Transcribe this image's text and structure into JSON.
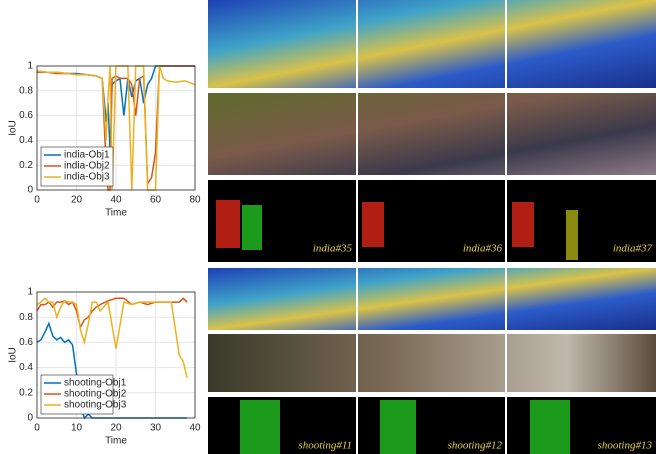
{
  "chart_data": [
    {
      "type": "line",
      "xlabel": "Time",
      "ylabel": "IoU",
      "x": [
        0,
        5,
        10,
        15,
        20,
        25,
        30,
        33,
        35,
        36,
        37,
        38,
        40,
        42,
        44,
        46,
        48,
        50,
        52,
        54,
        56,
        58,
        60,
        62,
        64,
        66,
        70,
        75,
        80
      ],
      "series": [
        {
          "name": "india-Obj1",
          "color": "#0072bd",
          "values": [
            0.96,
            0.95,
            0.95,
            0.94,
            0.94,
            0.93,
            0.92,
            0.9,
            0.55,
            0.7,
            0.3,
            0.85,
            0.88,
            0.9,
            0.6,
            0.9,
            0.75,
            0.88,
            0.9,
            0.7,
            0.85,
            0.9,
            1,
            1,
            1,
            1,
            1,
            1,
            1
          ]
        },
        {
          "name": "india-Obj2",
          "color": "#d95319",
          "values": [
            0.95,
            0.95,
            0.94,
            0.94,
            0.93,
            0.93,
            0.92,
            0.9,
            0.2,
            0,
            0,
            0.9,
            0.92,
            0.9,
            0.9,
            0.9,
            0.85,
            0.6,
            0.9,
            0.92,
            0.05,
            0.1,
            0.3,
            1,
            1,
            1,
            1,
            1,
            1
          ]
        },
        {
          "name": "india-Obj3",
          "color": "#edb120",
          "values": [
            0.96,
            0.95,
            0.95,
            0.94,
            0.93,
            0.93,
            0.92,
            0.9,
            0.4,
            0.75,
            1,
            0,
            1,
            1,
            1,
            1,
            0,
            1,
            1,
            1,
            0,
            0,
            0,
            1,
            0.9,
            0.88,
            0.87,
            0.88,
            0.85
          ]
        }
      ],
      "xlim": [
        0,
        80
      ],
      "xticks": [
        0,
        20,
        40,
        60,
        80
      ],
      "ylim": [
        0,
        1
      ],
      "yticks": [
        0,
        0.2,
        0.4,
        0.6,
        0.8,
        1
      ],
      "grid": true,
      "legend": "lower left"
    },
    {
      "type": "line",
      "xlabel": "Time",
      "ylabel": "IoU",
      "x": [
        0,
        1,
        2,
        3,
        4,
        5,
        6,
        7,
        8,
        9,
        10,
        11,
        12,
        13,
        14,
        15,
        16,
        18,
        20,
        22,
        24,
        26,
        28,
        30,
        32,
        34,
        36,
        37,
        38
      ],
      "series": [
        {
          "name": "shooting-Obj1",
          "color": "#0072bd",
          "values": [
            0.6,
            0.62,
            0.68,
            0.75,
            0.65,
            0.62,
            0.64,
            0.6,
            0.62,
            0.58,
            0.35,
            0.1,
            0,
            0.03,
            0,
            0,
            0,
            0,
            0,
            0,
            0,
            0,
            0,
            0,
            0,
            0,
            0,
            0,
            0
          ]
        },
        {
          "name": "shooting-Obj2",
          "color": "#d95319",
          "values": [
            0.85,
            0.9,
            0.9,
            0.92,
            0.88,
            0.92,
            0.92,
            0.93,
            0.9,
            0.92,
            0.85,
            0.72,
            0.78,
            0.8,
            0.85,
            0.88,
            0.9,
            0.93,
            0.95,
            0.95,
            0.9,
            0.92,
            0.9,
            0.92,
            0.92,
            0.92,
            0.92,
            0.95,
            0.92
          ]
        },
        {
          "name": "shooting-Obj3",
          "color": "#edb120",
          "values": [
            0.9,
            0.92,
            0.95,
            0.92,
            0.92,
            0.8,
            0.88,
            0.93,
            0.92,
            0.92,
            0.9,
            0.7,
            0.6,
            0.75,
            0.92,
            0.92,
            0.85,
            0.92,
            0.55,
            0.92,
            0.9,
            0.92,
            0.92,
            0.92,
            0.92,
            0.92,
            0.5,
            0.45,
            0.32
          ]
        }
      ],
      "xlim": [
        0,
        40
      ],
      "xticks": [
        0,
        10,
        20,
        30,
        40
      ],
      "ylim": [
        0,
        1
      ],
      "yticks": [
        0,
        0.2,
        0.4,
        0.6,
        0.8,
        1
      ],
      "grid": true,
      "legend": "lower left"
    }
  ],
  "panels": {
    "india": [
      "india#35",
      "india#36",
      "india#37"
    ],
    "shooting": [
      "shooting#11",
      "shooting#12",
      "shooting#13"
    ]
  }
}
